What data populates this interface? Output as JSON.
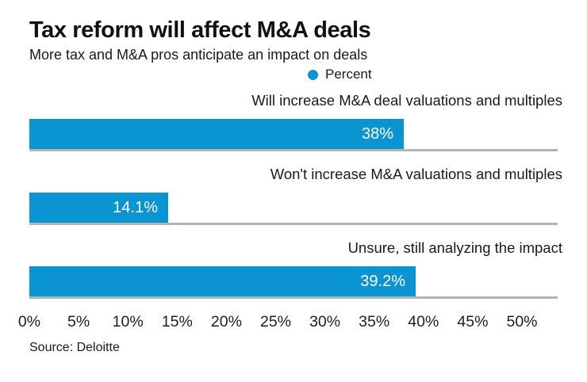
{
  "chart_data": {
    "type": "bar",
    "orientation": "horizontal",
    "title": "Tax reform will affect M&A deals",
    "subtitle": "More tax and M&A pros anticipate an impact on deals",
    "legend": {
      "label": "Percent"
    },
    "categories": [
      "Will increase M&A deal valuations and multiples",
      "Won't increase M&A valuations and multiples",
      "Unsure, still analyzing the impact"
    ],
    "values": [
      38,
      14.1,
      39.2
    ],
    "value_labels": [
      "38%",
      "14.1%",
      "39.2%"
    ],
    "xlim": [
      0,
      50
    ],
    "x_ticks": [
      "0%",
      "5%",
      "10%",
      "15%",
      "20%",
      "25%",
      "30%",
      "35%",
      "40%",
      "45%",
      "50%"
    ],
    "grid": false,
    "legend_position": "top-center",
    "source": "Source: Deloitte"
  },
  "colors": {
    "bar": "#0a94d1",
    "baseline": "#b4b4b4",
    "value_text": "#ffffff",
    "text": "#1a1a1a"
  }
}
